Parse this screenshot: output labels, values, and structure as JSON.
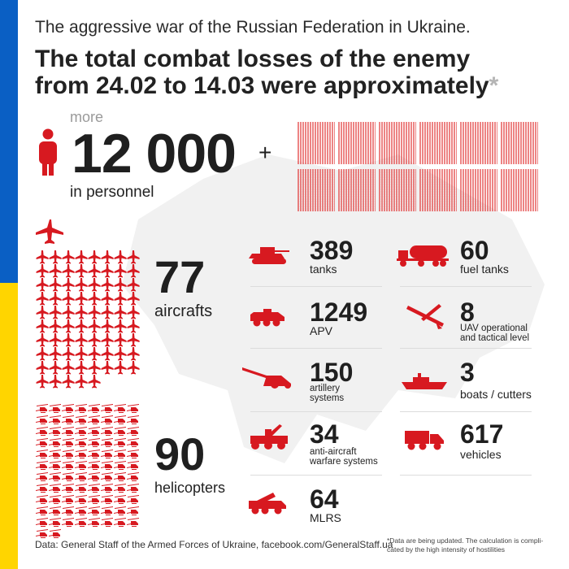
{
  "header": {
    "subtitle": "The aggressive war of the Russian Federation in Ukraine.",
    "title_line1": "The total combat losses of the enemy",
    "title_line2": "from 24.02 to 14.03 were approximately",
    "asterisk": "*"
  },
  "personnel": {
    "prefix": "more",
    "value": "12 000",
    "plus": "+",
    "label": "in personnel",
    "icon": "person-icon"
  },
  "aircraft": {
    "value": "77",
    "label": "aircrafts",
    "icon": "aircraft-icon"
  },
  "helicopters": {
    "value": "90",
    "label": "helicopters",
    "icon": "helicopter-icon"
  },
  "stats": [
    {
      "value": "389",
      "label": "tanks",
      "icon": "tank-icon"
    },
    {
      "value": "60",
      "label": "fuel tanks",
      "icon": "fuel-tank-icon"
    },
    {
      "value": "1249",
      "label": "APV",
      "icon": "apv-icon"
    },
    {
      "value": "8",
      "label_line1": "UAV operational",
      "label_line2": "and tactical level",
      "icon": "drone-icon"
    },
    {
      "value": "150",
      "label_line1": "artillery",
      "label_line2": "systems",
      "icon": "artillery-icon"
    },
    {
      "value": "3",
      "label": "boats / cutters",
      "icon": "boat-icon"
    },
    {
      "value": "34",
      "label_line1": "anti-aircraft",
      "label_line2": "warfare systems",
      "icon": "anti-aircraft-icon"
    },
    {
      "value": "617",
      "label": "vehicles",
      "icon": "truck-icon"
    },
    {
      "value": "64",
      "label": "MLRS",
      "icon": "mlrs-icon"
    }
  ],
  "footer": {
    "source": "Data: General Staff of the Armed Forces of Ukraine, facebook.com/GeneralStaff.ua",
    "note_line1": "*Data are being updated. The calculation is compli-",
    "note_line2": "cated by the high intensity of hostilities"
  },
  "colors": {
    "accent": "#d71920",
    "flag_blue": "#0a5fc4",
    "flag_yellow": "#ffd500",
    "text": "#1f1f1f"
  }
}
